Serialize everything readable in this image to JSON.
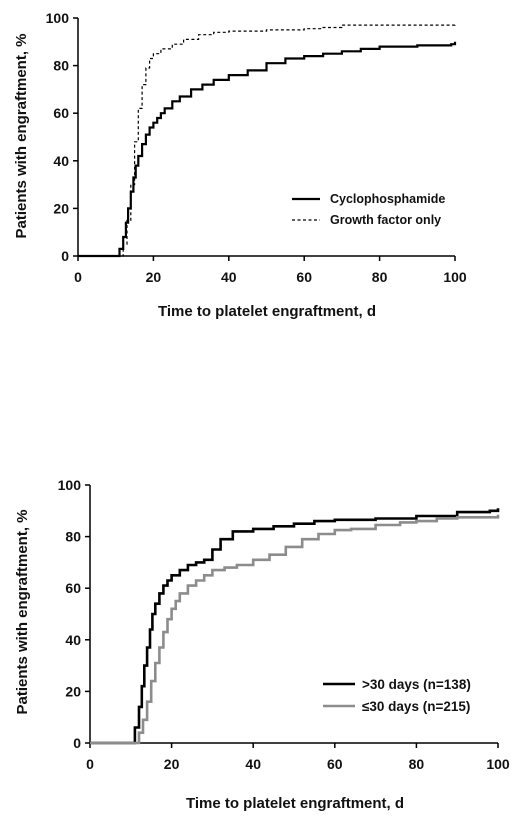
{
  "chart_data": [
    {
      "type": "line",
      "xlabel": "Time to platelet engraftment, d",
      "ylabel": "Patients with engraftment, %",
      "xlim": [
        0,
        100
      ],
      "ylim": [
        0,
        100
      ],
      "xticks": [
        "0",
        "20",
        "40",
        "60",
        "80",
        "100"
      ],
      "yticks": [
        "0",
        "20",
        "40",
        "60",
        "80",
        "100"
      ],
      "legend_position": "bottom-right",
      "series": [
        {
          "name": "Cyclophosphamide",
          "style": "solid",
          "color": "#000000",
          "points": [
            [
              0,
              0
            ],
            [
              10,
              0
            ],
            [
              11,
              3
            ],
            [
              12,
              8
            ],
            [
              12.7,
              14
            ],
            [
              13.3,
              20
            ],
            [
              14,
              27
            ],
            [
              14.7,
              33
            ],
            [
              15.3,
              38
            ],
            [
              16,
              42
            ],
            [
              17,
              47
            ],
            [
              18,
              51
            ],
            [
              19,
              54
            ],
            [
              20,
              56
            ],
            [
              21,
              58
            ],
            [
              22,
              60
            ],
            [
              23,
              62
            ],
            [
              25,
              65
            ],
            [
              27,
              67
            ],
            [
              30,
              70
            ],
            [
              33,
              72
            ],
            [
              36,
              74
            ],
            [
              40,
              76
            ],
            [
              45,
              78
            ],
            [
              50,
              81
            ],
            [
              55,
              83
            ],
            [
              60,
              84
            ],
            [
              65,
              85
            ],
            [
              70,
              86
            ],
            [
              75,
              87
            ],
            [
              80,
              88
            ],
            [
              90,
              88.5
            ],
            [
              99,
              89
            ],
            [
              100,
              90
            ]
          ]
        },
        {
          "name": "Growth factor only",
          "style": "dashed",
          "color": "#000000",
          "points": [
            [
              0,
              0
            ],
            [
              11,
              0
            ],
            [
              12,
              5
            ],
            [
              13,
              15
            ],
            [
              14,
              30
            ],
            [
              15,
              48
            ],
            [
              16,
              62
            ],
            [
              17,
              72
            ],
            [
              18,
              79
            ],
            [
              19,
              83
            ],
            [
              20,
              85
            ],
            [
              22,
              87
            ],
            [
              25,
              89
            ],
            [
              28,
              91
            ],
            [
              32,
              93
            ],
            [
              36,
              94
            ],
            [
              40,
              94.5
            ],
            [
              50,
              95
            ],
            [
              60,
              95.5
            ],
            [
              65,
              96
            ],
            [
              70,
              97
            ],
            [
              80,
              97
            ],
            [
              90,
              97
            ],
            [
              100,
              98
            ]
          ]
        }
      ]
    },
    {
      "type": "line",
      "xlabel": "Time to platelet engraftment, d",
      "ylabel": "Patients with engraftment, %",
      "xlim": [
        0,
        100
      ],
      "ylim": [
        0,
        100
      ],
      "xticks": [
        "0",
        "20",
        "40",
        "60",
        "80",
        "100"
      ],
      "yticks": [
        "0",
        "20",
        "40",
        "60",
        "80",
        "100"
      ],
      "legend_position": "bottom-right",
      "series": [
        {
          "name": ">30 days (n=138)",
          "style": "solid",
          "color": "#000000",
          "points": [
            [
              0,
              0
            ],
            [
              10,
              0
            ],
            [
              11,
              6
            ],
            [
              12,
              14
            ],
            [
              12.7,
              22
            ],
            [
              13.3,
              30
            ],
            [
              14,
              37
            ],
            [
              14.7,
              44
            ],
            [
              15.3,
              50
            ],
            [
              16,
              54
            ],
            [
              17,
              58
            ],
            [
              18,
              61
            ],
            [
              19,
              63
            ],
            [
              20,
              65
            ],
            [
              22,
              67
            ],
            [
              24,
              69
            ],
            [
              26,
              70
            ],
            [
              28,
              71
            ],
            [
              30,
              75
            ],
            [
              32,
              79
            ],
            [
              35,
              82
            ],
            [
              40,
              83
            ],
            [
              45,
              84
            ],
            [
              50,
              85
            ],
            [
              55,
              86
            ],
            [
              60,
              86.5
            ],
            [
              70,
              87
            ],
            [
              80,
              88
            ],
            [
              90,
              89.5
            ],
            [
              98,
              90
            ],
            [
              100,
              91
            ]
          ]
        },
        {
          "name": "≤30 days (n=215)",
          "style": "solid",
          "color": "#8c8c8c",
          "points": [
            [
              0,
              0
            ],
            [
              11,
              0
            ],
            [
              12,
              4
            ],
            [
              13,
              9
            ],
            [
              14,
              16
            ],
            [
              15,
              24
            ],
            [
              16,
              31
            ],
            [
              17,
              37
            ],
            [
              18,
              43
            ],
            [
              19,
              48
            ],
            [
              20,
              52
            ],
            [
              21,
              55
            ],
            [
              22,
              58
            ],
            [
              24,
              61
            ],
            [
              26,
              63
            ],
            [
              28,
              65
            ],
            [
              30,
              67
            ],
            [
              33,
              68
            ],
            [
              36,
              69
            ],
            [
              40,
              71
            ],
            [
              44,
              73
            ],
            [
              48,
              76
            ],
            [
              52,
              79
            ],
            [
              56,
              81
            ],
            [
              60,
              82.5
            ],
            [
              64,
              83
            ],
            [
              70,
              84.5
            ],
            [
              76,
              85.5
            ],
            [
              80,
              86
            ],
            [
              85,
              87
            ],
            [
              90,
              87.5
            ],
            [
              100,
              88.5
            ]
          ]
        }
      ]
    }
  ]
}
